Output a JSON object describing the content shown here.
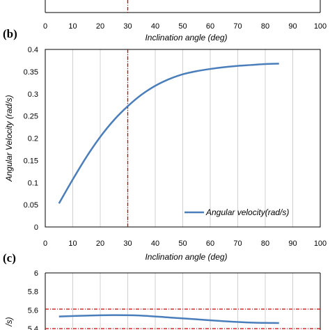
{
  "chart_data": [
    {
      "panel": "",
      "type": "line",
      "xlabel": "Inclination angle (deg)",
      "xticks": [
        "0",
        "10",
        "20",
        "30",
        "40",
        "50",
        "60",
        "70",
        "80",
        "90",
        "100"
      ],
      "xlim": [
        0,
        100
      ],
      "series": [],
      "ref_vline_x": 30
    },
    {
      "panel": "(b)",
      "type": "line",
      "xlabel": "Inclination angle (deg)",
      "ylabel": "Angular Velocity (rad/s)",
      "xticks": [
        "0",
        "10",
        "20",
        "30",
        "40",
        "50",
        "60",
        "70",
        "80",
        "90",
        "100"
      ],
      "yticks": [
        "0",
        "0.05",
        "0.1",
        "0.15",
        "0.2",
        "0.25",
        "0.3",
        "0.35",
        "0.4"
      ],
      "xlim": [
        0,
        100
      ],
      "ylim": [
        0,
        0.4
      ],
      "grid": "vertical",
      "legend_position": "bottom-right",
      "series": [
        {
          "name": "Angular velocity(rad/s)",
          "color": "#4a7ebb",
          "x": [
            5,
            10,
            15,
            20,
            25,
            30,
            35,
            40,
            45,
            50,
            55,
            60,
            65,
            70,
            75,
            80,
            85
          ],
          "y": [
            0.053,
            0.107,
            0.158,
            0.203,
            0.241,
            0.272,
            0.298,
            0.318,
            0.333,
            0.344,
            0.351,
            0.356,
            0.36,
            0.363,
            0.365,
            0.367,
            0.368
          ]
        }
      ],
      "ref_vline_x": 30,
      "ref_color": "#cc0000"
    },
    {
      "panel": "(c)",
      "type": "line",
      "ylabel": "/s)",
      "yticks": [
        "5.4",
        "5.6",
        "5.8",
        "6"
      ],
      "ylim": [
        5.4,
        6
      ],
      "grid": "vertical",
      "series": [
        {
          "color": "#4a7ebb",
          "x": [
            5,
            15,
            25,
            35,
            45,
            55,
            65,
            75,
            85
          ],
          "y": [
            5.53,
            5.54,
            5.545,
            5.54,
            5.52,
            5.5,
            5.48,
            5.465,
            5.46
          ]
        }
      ],
      "ref_hlines_y": [
        5.61,
        5.4
      ],
      "ref_color": "#cc0000"
    }
  ]
}
